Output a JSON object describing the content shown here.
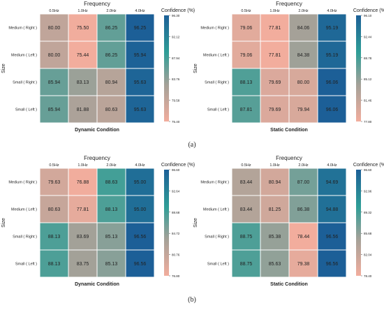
{
  "captions": {
    "a": "(a)",
    "b": "(b)"
  },
  "colors": {
    "low": "#f2ad9d",
    "mid": "#a3a198",
    "mid2": "#2f9e97",
    "high": "#1c5f97"
  },
  "chart_data": [
    {
      "type": "heatmap",
      "title": "Frequency",
      "xlabel": "Dynamic Condition",
      "ylabel": "Size",
      "colorbar_label": "Confidence (%)",
      "x_categories": [
        "0.5Hz",
        "1.0Hz",
        "2.0Hz",
        "4.0Hz"
      ],
      "y_categories": [
        "Medium ( Right )",
        "Medium ( Left )",
        "Small ( Right )",
        "Small ( Left )"
      ],
      "values": [
        [
          80.0,
          75.5,
          86.25,
          96.25
        ],
        [
          80.0,
          75.44,
          86.25,
          95.94
        ],
        [
          85.94,
          83.13,
          80.94,
          95.63
        ],
        [
          85.94,
          81.88,
          80.63,
          95.63
        ]
      ],
      "colorbar_ticks": [
        "96.30",
        "92.12",
        "87.94",
        "83.76",
        "79.58",
        "75.40"
      ],
      "range": [
        75.4,
        96.3
      ]
    },
    {
      "type": "heatmap",
      "title": "Frequency",
      "xlabel": "Static Condition",
      "ylabel": "Size",
      "colorbar_label": "Confidence (%)",
      "x_categories": [
        "0.5Hz",
        "1.0Hz",
        "2.0Hz",
        "4.0Hz"
      ],
      "y_categories": [
        "Medium ( Right )",
        "Medium ( Left )",
        "Small ( Right )",
        "Small ( Left )"
      ],
      "values": [
        [
          79.06,
          77.81,
          84.06,
          95.19
        ],
        [
          79.06,
          77.81,
          84.38,
          95.19
        ],
        [
          88.13,
          79.69,
          80.0,
          96.06
        ],
        [
          87.81,
          79.69,
          79.94,
          96.06
        ]
      ],
      "colorbar_ticks": [
        "96.10",
        "92.44",
        "88.78",
        "85.12",
        "81.46",
        "77.80"
      ],
      "range": [
        77.8,
        96.1
      ]
    },
    {
      "type": "heatmap",
      "title": "Frequency",
      "xlabel": "Dynamic Condition",
      "ylabel": "Size",
      "colorbar_label": "Confidence (%)",
      "x_categories": [
        "0.5Hz",
        "1.0Hz",
        "2.0Hz",
        "4.0Hz"
      ],
      "y_categories": [
        "Medium ( Right )",
        "Medium ( Left )",
        "Small ( Right )",
        "Small ( Left )"
      ],
      "values": [
        [
          79.63,
          76.88,
          88.63,
          95.0
        ],
        [
          80.63,
          77.81,
          88.13,
          95.0
        ],
        [
          88.13,
          83.69,
          85.13,
          96.56
        ],
        [
          88.13,
          83.75,
          85.13,
          96.56
        ]
      ],
      "colorbar_ticks": [
        "96.60",
        "92.64",
        "88.68",
        "84.72",
        "80.76",
        "76.80"
      ],
      "range": [
        76.8,
        96.6
      ]
    },
    {
      "type": "heatmap",
      "title": "Frequency",
      "xlabel": "Static Condition",
      "ylabel": "Size",
      "colorbar_label": "Confidence (%)",
      "x_categories": [
        "0.5Hz",
        "1.0Hz",
        "2.0Hz",
        "4.0Hz"
      ],
      "y_categories": [
        "Medium ( Right )",
        "Medium ( Left )",
        "Small ( Right )",
        "Small ( Left )"
      ],
      "values": [
        [
          83.44,
          80.94,
          87.0,
          94.69
        ],
        [
          83.44,
          81.25,
          86.38,
          94.88
        ],
        [
          88.75,
          85.38,
          78.44,
          96.56
        ],
        [
          88.75,
          85.63,
          79.38,
          96.56
        ]
      ],
      "colorbar_ticks": [
        "96.60",
        "92.96",
        "89.32",
        "85.68",
        "82.04",
        "78.40"
      ],
      "range": [
        78.4,
        96.6
      ]
    }
  ]
}
